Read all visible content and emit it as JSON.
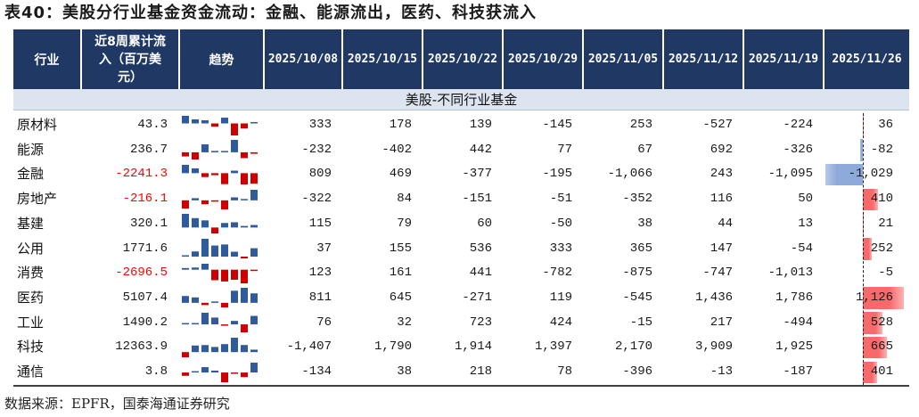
{
  "title": "表40：美股分行业基金资金流动：金融、能源流出，医药、科技获流入",
  "header": {
    "industry": "行业",
    "cumulative": "近8周累计流入（百万美元）",
    "trend": "趋势",
    "dates": [
      "2025/10/08",
      "2025/10/15",
      "2025/10/22",
      "2025/10/29",
      "2025/11/05",
      "2025/11/12",
      "2025/11/19",
      "2025/11/26"
    ]
  },
  "section_label": "美股-不同行业基金",
  "rows": [
    {
      "industry": "原材料",
      "cumulative": "43.3",
      "flows": [
        "333",
        "178",
        "139",
        "-145",
        "253",
        "-527",
        "-224",
        "36"
      ]
    },
    {
      "industry": "能源",
      "cumulative": "236.7",
      "flows": [
        "-232",
        "-402",
        "442",
        "77",
        "67",
        "692",
        "-326",
        "-82"
      ]
    },
    {
      "industry": "金融",
      "cumulative": "-2241.3",
      "flows": [
        "809",
        "469",
        "-377",
        "-195",
        "-1,066",
        "243",
        "-1,095",
        "-1,029"
      ]
    },
    {
      "industry": "房地产",
      "cumulative": "-216.1",
      "flows": [
        "-322",
        "84",
        "-151",
        "-51",
        "-352",
        "116",
        "50",
        "410"
      ]
    },
    {
      "industry": "基建",
      "cumulative": "320.1",
      "flows": [
        "115",
        "79",
        "60",
        "-50",
        "38",
        "44",
        "13",
        "21"
      ]
    },
    {
      "industry": "公用",
      "cumulative": "1771.6",
      "flows": [
        "37",
        "155",
        "536",
        "333",
        "365",
        "147",
        "-54",
        "252"
      ]
    },
    {
      "industry": "消费",
      "cumulative": "-2696.5",
      "flows": [
        "123",
        "161",
        "441",
        "-782",
        "-875",
        "-747",
        "-1,013",
        "-5"
      ]
    },
    {
      "industry": "医药",
      "cumulative": "5107.4",
      "flows": [
        "811",
        "645",
        "-271",
        "119",
        "-545",
        "1,436",
        "1,786",
        "1,126"
      ]
    },
    {
      "industry": "工业",
      "cumulative": "1490.2",
      "flows": [
        "76",
        "32",
        "723",
        "424",
        "-15",
        "217",
        "-494",
        "528"
      ]
    },
    {
      "industry": "科技",
      "cumulative": "12363.9",
      "flows": [
        "-1,407",
        "1,790",
        "1,914",
        "1,397",
        "2,170",
        "3,909",
        "1,925",
        "665"
      ]
    },
    {
      "industry": "通信",
      "cumulative": "3.8",
      "flows": [
        "-134",
        "38",
        "218",
        "78",
        "-396",
        "-13",
        "-187",
        "401"
      ]
    }
  ],
  "source": "数据来源：EPFR，国泰海通证券研究",
  "colors": {
    "header_bg": "#203864",
    "section_bg": "#dce4f0",
    "negative_text": "#ff0000",
    "spark_positive": "#2f5b9c",
    "spark_negative": "#cc0000",
    "databar_positive": "#f8696b",
    "databar_negative": "#8eaadb"
  }
}
